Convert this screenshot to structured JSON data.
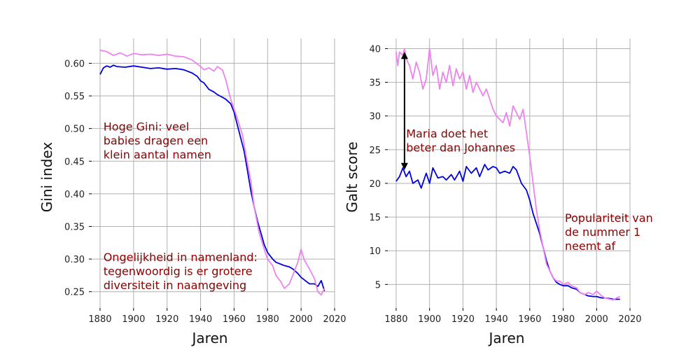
{
  "colors": {
    "series_1": "#0000e0",
    "series_2": "#ee82ee",
    "annotation": "#8b0000",
    "grid": "#b0b0b0",
    "arrow": "#000000"
  },
  "chart_data": [
    {
      "type": "line",
      "xlabel": "Jaren",
      "ylabel": "Gini index",
      "xlim": [
        1875,
        2020
      ],
      "ylim": [
        0.225,
        0.638
      ],
      "xticks": [
        1880,
        1900,
        1920,
        1940,
        1960,
        1980,
        2000,
        2020
      ],
      "yticks": [
        0.25,
        0.3,
        0.35,
        0.4,
        0.45,
        0.5,
        0.55,
        0.6
      ],
      "ytick_labels": [
        "0.25",
        "0.30",
        "0.35",
        "0.40",
        "0.45",
        "0.50",
        "0.55",
        "0.60"
      ],
      "grid": true,
      "annotations": [
        {
          "lines": [
            "Hoge Gini: veel",
            "babies dragen een",
            "klein aantal namen"
          ],
          "x": 1882,
          "y": 0.497
        },
        {
          "lines": [
            "Ongelijkheid in namenland:",
            "tegenwoordig is er grotere",
            "diversiteit in naamgeving"
          ],
          "x": 1882,
          "y": 0.297
        }
      ],
      "series": [
        {
          "color": "#0000e0",
          "x": [
            1880,
            1882,
            1884,
            1886,
            1888,
            1890,
            1895,
            1900,
            1905,
            1910,
            1915,
            1920,
            1925,
            1930,
            1935,
            1938,
            1940,
            1942,
            1945,
            1948,
            1950,
            1953,
            1955,
            1958,
            1960,
            1962,
            1964,
            1966,
            1968,
            1970,
            1972,
            1974,
            1976,
            1978,
            1980,
            1983,
            1985,
            1988,
            1990,
            1993,
            1995,
            1998,
            2000,
            2003,
            2005,
            2008,
            2010,
            2012,
            2014
          ],
          "y": [
            0.583,
            0.593,
            0.596,
            0.594,
            0.597,
            0.595,
            0.594,
            0.596,
            0.594,
            0.592,
            0.593,
            0.591,
            0.592,
            0.59,
            0.585,
            0.58,
            0.573,
            0.57,
            0.56,
            0.556,
            0.552,
            0.548,
            0.545,
            0.538,
            0.525,
            0.505,
            0.485,
            0.465,
            0.435,
            0.405,
            0.38,
            0.358,
            0.34,
            0.322,
            0.31,
            0.3,
            0.295,
            0.292,
            0.29,
            0.288,
            0.285,
            0.278,
            0.272,
            0.266,
            0.262,
            0.262,
            0.258,
            0.267,
            0.251
          ]
        },
        {
          "color": "#ee82ee",
          "x": [
            1880,
            1884,
            1888,
            1892,
            1896,
            1900,
            1905,
            1910,
            1915,
            1920,
            1925,
            1930,
            1935,
            1940,
            1942,
            1945,
            1948,
            1950,
            1953,
            1955,
            1958,
            1960,
            1962,
            1965,
            1967,
            1970,
            1972,
            1975,
            1978,
            1980,
            1983,
            1985,
            1988,
            1990,
            1993,
            1995,
            1998,
            2000,
            2002,
            2005,
            2008,
            2010,
            2012,
            2014
          ],
          "y": [
            0.62,
            0.618,
            0.612,
            0.616,
            0.611,
            0.615,
            0.613,
            0.614,
            0.612,
            0.614,
            0.611,
            0.61,
            0.605,
            0.595,
            0.59,
            0.593,
            0.588,
            0.595,
            0.59,
            0.575,
            0.545,
            0.53,
            0.515,
            0.49,
            0.46,
            0.42,
            0.38,
            0.34,
            0.315,
            0.3,
            0.29,
            0.275,
            0.265,
            0.255,
            0.262,
            0.275,
            0.295,
            0.315,
            0.298,
            0.285,
            0.27,
            0.25,
            0.245,
            0.255
          ]
        }
      ]
    },
    {
      "type": "line",
      "xlabel": "Jaren",
      "ylabel": "Galt score",
      "xlim": [
        1875,
        2020
      ],
      "ylim": [
        1.5,
        41.5
      ],
      "xticks": [
        1880,
        1900,
        1920,
        1940,
        1960,
        1980,
        2000,
        2020
      ],
      "yticks": [
        5,
        10,
        15,
        20,
        25,
        30,
        35,
        40
      ],
      "ytick_labels": [
        "5",
        "10",
        "15",
        "20",
        "25",
        "30",
        "35",
        "40"
      ],
      "grid": true,
      "annotations": [
        {
          "lines": [
            "Maria doet het",
            "beter dan Johannes"
          ],
          "x": 1886,
          "y": 26.8
        },
        {
          "lines": [
            "Populariteit van",
            "de nummer 1",
            "neemt af"
          ],
          "x": 1981,
          "y": 14.3
        }
      ],
      "arrow": {
        "x": 1885,
        "y_from": 22.0,
        "y_to": 39.5
      },
      "series": [
        {
          "color": "#0000e0",
          "x": [
            1880,
            1882,
            1884,
            1886,
            1888,
            1890,
            1893,
            1895,
            1898,
            1900,
            1902,
            1905,
            1908,
            1910,
            1913,
            1915,
            1918,
            1920,
            1922,
            1925,
            1928,
            1930,
            1933,
            1935,
            1938,
            1940,
            1942,
            1945,
            1948,
            1950,
            1952,
            1955,
            1958,
            1960,
            1962,
            1964,
            1966,
            1968,
            1970,
            1972,
            1974,
            1976,
            1978,
            1980,
            1983,
            1985,
            1988,
            1990,
            1993,
            1995,
            1998,
            2000,
            2003,
            2005,
            2008,
            2010,
            2012,
            2014
          ],
          "y": [
            20.3,
            21.0,
            22.3,
            21.0,
            21.8,
            20.0,
            20.5,
            19.3,
            21.5,
            20.0,
            22.3,
            20.8,
            21.0,
            20.5,
            21.3,
            20.5,
            21.8,
            20.3,
            22.5,
            21.5,
            22.3,
            21.0,
            22.8,
            22.0,
            22.5,
            22.3,
            21.5,
            21.8,
            21.5,
            22.5,
            22.0,
            20.0,
            19.0,
            17.5,
            15.5,
            14.0,
            12.5,
            10.5,
            8.5,
            7.0,
            6.0,
            5.3,
            5.0,
            4.8,
            4.8,
            4.5,
            4.3,
            3.8,
            3.5,
            3.3,
            3.2,
            3.2,
            3.0,
            3.0,
            2.9,
            2.8,
            2.8,
            2.8
          ]
        },
        {
          "color": "#ee82ee",
          "x": [
            1880,
            1881,
            1882,
            1884,
            1885,
            1886,
            1888,
            1890,
            1892,
            1894,
            1896,
            1898,
            1900,
            1902,
            1904,
            1906,
            1908,
            1910,
            1912,
            1914,
            1916,
            1918,
            1920,
            1922,
            1924,
            1926,
            1928,
            1930,
            1932,
            1934,
            1936,
            1938,
            1940,
            1942,
            1944,
            1946,
            1948,
            1950,
            1952,
            1954,
            1956,
            1958,
            1960,
            1962,
            1964,
            1966,
            1968,
            1970,
            1972,
            1974,
            1976,
            1978,
            1980,
            1983,
            1985,
            1988,
            1990,
            1993,
            1995,
            1998,
            2000,
            2003,
            2005,
            2008,
            2010,
            2012,
            2014
          ],
          "y": [
            39.5,
            37.5,
            39.5,
            39.0,
            40.0,
            38.5,
            37.5,
            35.5,
            38.0,
            36.5,
            34.0,
            35.5,
            40.0,
            36.0,
            37.5,
            34.0,
            36.5,
            35.0,
            37.5,
            34.5,
            37.0,
            35.5,
            36.5,
            34.0,
            36.0,
            33.5,
            35.0,
            34.0,
            33.0,
            34.0,
            32.5,
            31.0,
            30.0,
            29.5,
            29.0,
            30.5,
            28.5,
            31.5,
            30.5,
            29.5,
            31.0,
            27.5,
            24.0,
            20.0,
            16.0,
            13.0,
            10.5,
            8.0,
            7.0,
            6.0,
            5.5,
            5.5,
            5.0,
            5.3,
            4.8,
            4.5,
            3.8,
            3.5,
            3.8,
            3.5,
            4.0,
            3.3,
            3.0,
            2.8,
            2.7,
            3.0,
            3.2
          ]
        }
      ]
    }
  ]
}
